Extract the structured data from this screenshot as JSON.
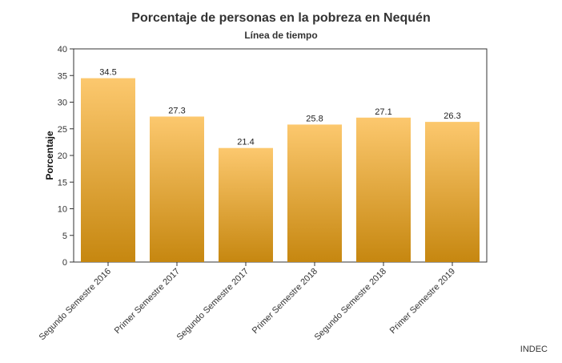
{
  "title": "Porcentaje de personas en la pobreza en Nequén",
  "subtitle": "Línea de tiempo",
  "source": "INDEC",
  "chart_data": {
    "type": "bar",
    "title": "Porcentaje de personas en la pobreza en Nequén",
    "subtitle": "Línea de tiempo",
    "xlabel": "",
    "ylabel": "Porcentaje",
    "categories": [
      "Segundo Semestre 2016",
      "Primer Semestre 2017",
      "Segundo Semestre 2017",
      "Primer Semestre 2018",
      "Segundo Semestre 2018",
      "Primer Semestre 2019"
    ],
    "values": [
      34.5,
      27.3,
      21.4,
      25.8,
      27.1,
      26.3
    ],
    "value_labels": [
      "34.5",
      "27.3",
      "21.4",
      "25.8",
      "27.1",
      "26.3"
    ],
    "ylim": [
      0,
      40
    ],
    "yticks": [
      0,
      5,
      10,
      15,
      20,
      25,
      30,
      35,
      40
    ],
    "grid": false,
    "bar_color_top": "#FCC86E",
    "bar_color_bottom": "#C68710"
  }
}
